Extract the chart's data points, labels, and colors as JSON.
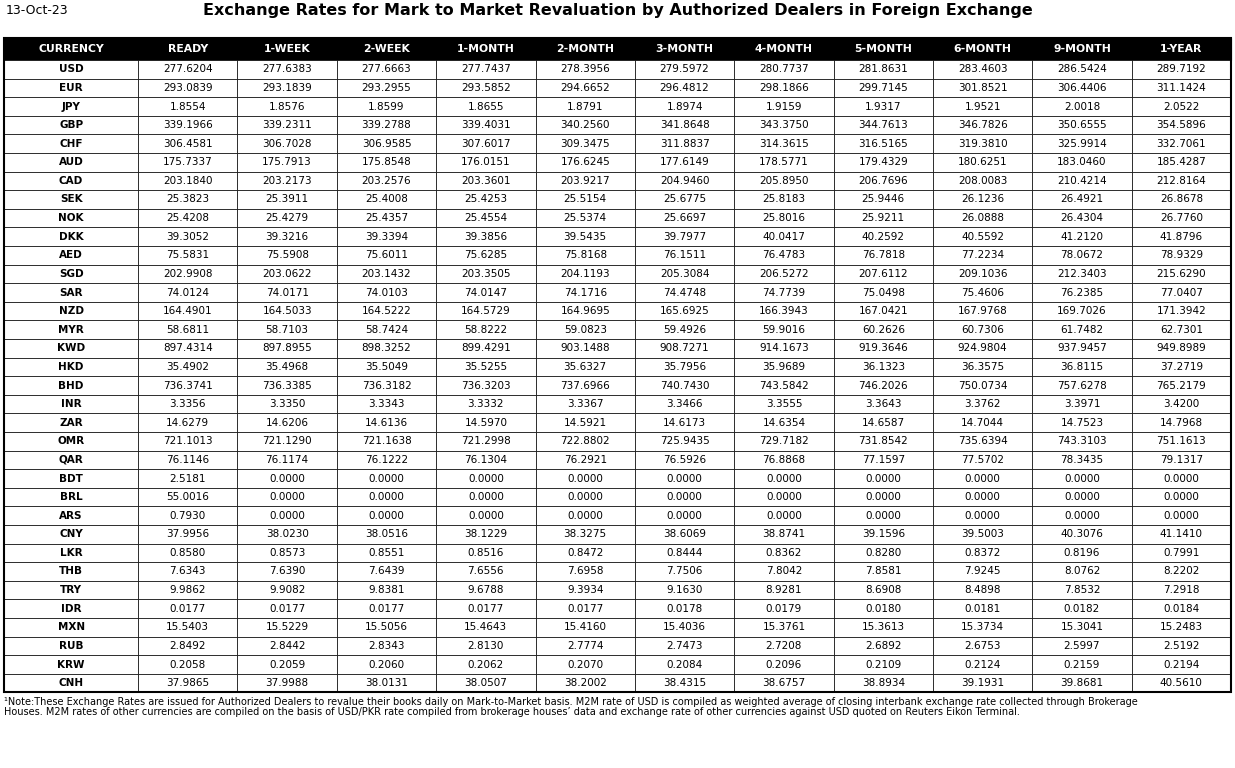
{
  "date": "13-Oct-23",
  "title": "Exchange Rates for Mark to Market Revaluation by Authorized Dealers in Foreign Exchange",
  "columns": [
    "CURRENCY",
    "READY",
    "1-WEEK",
    "2-WEEK",
    "1-MONTH",
    "2-MONTH",
    "3-MONTH",
    "4-MONTH",
    "5-MONTH",
    "6-MONTH",
    "9-MONTH",
    "1-YEAR"
  ],
  "rows": [
    [
      "USD",
      "277.6204",
      "277.6383",
      "277.6663",
      "277.7437",
      "278.3956",
      "279.5972",
      "280.7737",
      "281.8631",
      "283.4603",
      "286.5424",
      "289.7192"
    ],
    [
      "EUR",
      "293.0839",
      "293.1839",
      "293.2955",
      "293.5852",
      "294.6652",
      "296.4812",
      "298.1866",
      "299.7145",
      "301.8521",
      "306.4406",
      "311.1424"
    ],
    [
      "JPY",
      "1.8554",
      "1.8576",
      "1.8599",
      "1.8655",
      "1.8791",
      "1.8974",
      "1.9159",
      "1.9317",
      "1.9521",
      "2.0018",
      "2.0522"
    ],
    [
      "GBP",
      "339.1966",
      "339.2311",
      "339.2788",
      "339.4031",
      "340.2560",
      "341.8648",
      "343.3750",
      "344.7613",
      "346.7826",
      "350.6555",
      "354.5896"
    ],
    [
      "CHF",
      "306.4581",
      "306.7028",
      "306.9585",
      "307.6017",
      "309.3475",
      "311.8837",
      "314.3615",
      "316.5165",
      "319.3810",
      "325.9914",
      "332.7061"
    ],
    [
      "AUD",
      "175.7337",
      "175.7913",
      "175.8548",
      "176.0151",
      "176.6245",
      "177.6149",
      "178.5771",
      "179.4329",
      "180.6251",
      "183.0460",
      "185.4287"
    ],
    [
      "CAD",
      "203.1840",
      "203.2173",
      "203.2576",
      "203.3601",
      "203.9217",
      "204.9460",
      "205.8950",
      "206.7696",
      "208.0083",
      "210.4214",
      "212.8164"
    ],
    [
      "SEK",
      "25.3823",
      "25.3911",
      "25.4008",
      "25.4253",
      "25.5154",
      "25.6775",
      "25.8183",
      "25.9446",
      "26.1236",
      "26.4921",
      "26.8678"
    ],
    [
      "NOK",
      "25.4208",
      "25.4279",
      "25.4357",
      "25.4554",
      "25.5374",
      "25.6697",
      "25.8016",
      "25.9211",
      "26.0888",
      "26.4304",
      "26.7760"
    ],
    [
      "DKK",
      "39.3052",
      "39.3216",
      "39.3394",
      "39.3856",
      "39.5435",
      "39.7977",
      "40.0417",
      "40.2592",
      "40.5592",
      "41.2120",
      "41.8796"
    ],
    [
      "AED",
      "75.5831",
      "75.5908",
      "75.6011",
      "75.6285",
      "75.8168",
      "76.1511",
      "76.4783",
      "76.7818",
      "77.2234",
      "78.0672",
      "78.9329"
    ],
    [
      "SGD",
      "202.9908",
      "203.0622",
      "203.1432",
      "203.3505",
      "204.1193",
      "205.3084",
      "206.5272",
      "207.6112",
      "209.1036",
      "212.3403",
      "215.6290"
    ],
    [
      "SAR",
      "74.0124",
      "74.0171",
      "74.0103",
      "74.0147",
      "74.1716",
      "74.4748",
      "74.7739",
      "75.0498",
      "75.4606",
      "76.2385",
      "77.0407"
    ],
    [
      "NZD",
      "164.4901",
      "164.5033",
      "164.5222",
      "164.5729",
      "164.9695",
      "165.6925",
      "166.3943",
      "167.0421",
      "167.9768",
      "169.7026",
      "171.3942"
    ],
    [
      "MYR",
      "58.6811",
      "58.7103",
      "58.7424",
      "58.8222",
      "59.0823",
      "59.4926",
      "59.9016",
      "60.2626",
      "60.7306",
      "61.7482",
      "62.7301"
    ],
    [
      "KWD",
      "897.4314",
      "897.8955",
      "898.3252",
      "899.4291",
      "903.1488",
      "908.7271",
      "914.1673",
      "919.3646",
      "924.9804",
      "937.9457",
      "949.8989"
    ],
    [
      "HKD",
      "35.4902",
      "35.4968",
      "35.5049",
      "35.5255",
      "35.6327",
      "35.7956",
      "35.9689",
      "36.1323",
      "36.3575",
      "36.8115",
      "37.2719"
    ],
    [
      "BHD",
      "736.3741",
      "736.3385",
      "736.3182",
      "736.3203",
      "737.6966",
      "740.7430",
      "743.5842",
      "746.2026",
      "750.0734",
      "757.6278",
      "765.2179"
    ],
    [
      "INR",
      "3.3356",
      "3.3350",
      "3.3343",
      "3.3332",
      "3.3367",
      "3.3466",
      "3.3555",
      "3.3643",
      "3.3762",
      "3.3971",
      "3.4200"
    ],
    [
      "ZAR",
      "14.6279",
      "14.6206",
      "14.6136",
      "14.5970",
      "14.5921",
      "14.6173",
      "14.6354",
      "14.6587",
      "14.7044",
      "14.7523",
      "14.7968"
    ],
    [
      "OMR",
      "721.1013",
      "721.1290",
      "721.1638",
      "721.2998",
      "722.8802",
      "725.9435",
      "729.7182",
      "731.8542",
      "735.6394",
      "743.3103",
      "751.1613"
    ],
    [
      "QAR",
      "76.1146",
      "76.1174",
      "76.1222",
      "76.1304",
      "76.2921",
      "76.5926",
      "76.8868",
      "77.1597",
      "77.5702",
      "78.3435",
      "79.1317"
    ],
    [
      "BDT",
      "2.5181",
      "0.0000",
      "0.0000",
      "0.0000",
      "0.0000",
      "0.0000",
      "0.0000",
      "0.0000",
      "0.0000",
      "0.0000",
      "0.0000"
    ],
    [
      "BRL",
      "55.0016",
      "0.0000",
      "0.0000",
      "0.0000",
      "0.0000",
      "0.0000",
      "0.0000",
      "0.0000",
      "0.0000",
      "0.0000",
      "0.0000"
    ],
    [
      "ARS",
      "0.7930",
      "0.0000",
      "0.0000",
      "0.0000",
      "0.0000",
      "0.0000",
      "0.0000",
      "0.0000",
      "0.0000",
      "0.0000",
      "0.0000"
    ],
    [
      "CNY",
      "37.9956",
      "38.0230",
      "38.0516",
      "38.1229",
      "38.3275",
      "38.6069",
      "38.8741",
      "39.1596",
      "39.5003",
      "40.3076",
      "41.1410"
    ],
    [
      "LKR",
      "0.8580",
      "0.8573",
      "0.8551",
      "0.8516",
      "0.8472",
      "0.8444",
      "0.8362",
      "0.8280",
      "0.8372",
      "0.8196",
      "0.7991"
    ],
    [
      "THB",
      "7.6343",
      "7.6390",
      "7.6439",
      "7.6556",
      "7.6958",
      "7.7506",
      "7.8042",
      "7.8581",
      "7.9245",
      "8.0762",
      "8.2202"
    ],
    [
      "TRY",
      "9.9862",
      "9.9082",
      "9.8381",
      "9.6788",
      "9.3934",
      "9.1630",
      "8.9281",
      "8.6908",
      "8.4898",
      "7.8532",
      "7.2918"
    ],
    [
      "IDR",
      "0.0177",
      "0.0177",
      "0.0177",
      "0.0177",
      "0.0177",
      "0.0178",
      "0.0179",
      "0.0180",
      "0.0181",
      "0.0182",
      "0.0184"
    ],
    [
      "MXN",
      "15.5403",
      "15.5229",
      "15.5056",
      "15.4643",
      "15.4160",
      "15.4036",
      "15.3761",
      "15.3613",
      "15.3734",
      "15.3041",
      "15.2483"
    ],
    [
      "RUB",
      "2.8492",
      "2.8442",
      "2.8343",
      "2.8130",
      "2.7774",
      "2.7473",
      "2.7208",
      "2.6892",
      "2.6753",
      "2.5997",
      "2.5192"
    ],
    [
      "KRW",
      "0.2058",
      "0.2059",
      "0.2060",
      "0.2062",
      "0.2070",
      "0.2084",
      "0.2096",
      "0.2109",
      "0.2124",
      "0.2159",
      "0.2194"
    ],
    [
      "CNH",
      "37.9865",
      "37.9988",
      "38.0131",
      "38.0507",
      "38.2002",
      "38.4315",
      "38.6757",
      "38.8934",
      "39.1931",
      "39.8681",
      "40.5610"
    ]
  ],
  "note_line1": "¹Note:These Exchange Rates are issued for Authorized Dealers to revalue their books daily on Mark-to-Market basis. M2M rate of USD is compiled as weighted average of closing interbank exchange rate collected through Brokerage",
  "note_line2": "Houses. M2M rates of other currencies are compiled on the basis of USD/PKR rate compiled from brokerage houses’ data and exchange rate of other currencies against USD quoted on Reuters Eikon Terminal.",
  "header_bg": "#000000",
  "header_fg": "#ffffff",
  "border_color": "#000000",
  "title_color": "#000000",
  "date_color": "#000000",
  "col_widths_rel": [
    1.35,
    1.0,
    1.0,
    1.0,
    1.0,
    1.0,
    1.0,
    1.0,
    1.0,
    1.0,
    1.0,
    1.0
  ]
}
